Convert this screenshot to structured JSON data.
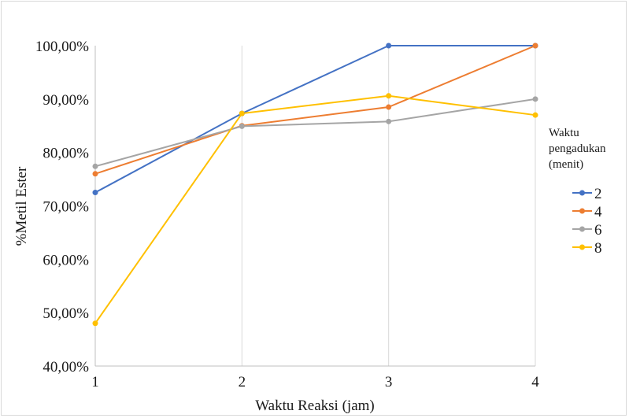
{
  "chart_data": {
    "type": "line",
    "title": "",
    "xlabel": "Waktu Reaksi (jam)",
    "ylabel": "%Metil Ester",
    "x": [
      1,
      2,
      3,
      4
    ],
    "xlim": [
      1,
      4
    ],
    "ylim": [
      40,
      100
    ],
    "yticks": [
      40,
      50,
      60,
      70,
      80,
      90,
      100
    ],
    "ytick_labels": [
      "40,00%",
      "50,00%",
      "60,00%",
      "70,00%",
      "80,00%",
      "90,00%",
      "100,00%"
    ],
    "xtick_labels": [
      "1",
      "2",
      "3",
      "4"
    ],
    "grid": "vertical",
    "legend": {
      "placement": "right",
      "title_lines": [
        "Waktu",
        "pengadukan",
        "(menit)"
      ]
    },
    "series": [
      {
        "name": "2",
        "color": "#4472C4",
        "values": [
          72.5,
          87.3,
          100,
          100
        ]
      },
      {
        "name": "4",
        "color": "#ED7D31",
        "values": [
          76.0,
          85.0,
          88.5,
          100
        ]
      },
      {
        "name": "6",
        "color": "#A5A5A5",
        "values": [
          77.4,
          84.9,
          85.8,
          90.0
        ]
      },
      {
        "name": "8",
        "color": "#FFC000",
        "values": [
          48.0,
          87.3,
          90.6,
          87.0
        ]
      }
    ]
  }
}
